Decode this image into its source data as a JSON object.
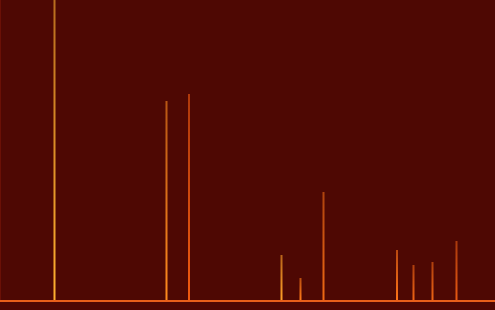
{
  "chart_data": {
    "type": "bar",
    "x": [
      78,
      238,
      270,
      402,
      429,
      462,
      567,
      591,
      618,
      652
    ],
    "values": [
      430,
      285,
      295,
      65,
      32,
      155,
      72,
      50,
      55,
      85
    ],
    "colors": [
      "#ffb030",
      "#ff8a1e",
      "#f05a10",
      "#ffa028",
      "#ff7a18",
      "#f06a14",
      "#ff7418",
      "#f06414",
      "#ee6414",
      "#e85a12"
    ],
    "xlim": [
      0,
      707
    ],
    "ylim": [
      0,
      430
    ],
    "grid": false,
    "tick_labels": false
  }
}
